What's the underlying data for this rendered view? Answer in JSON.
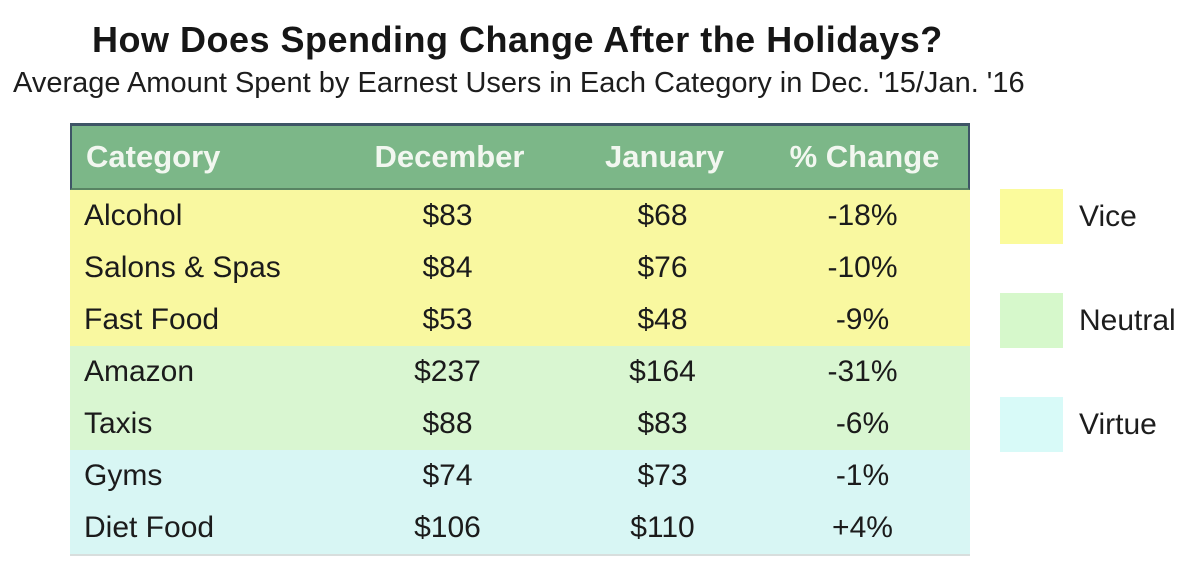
{
  "page": {
    "title": "How Does Spending Change After the Holidays?",
    "subtitle": "Average Amount Spent by Earnest Users in Each Category in Dec. '15/Jan. '16"
  },
  "chart_data": {
    "type": "table",
    "title": "How Does Spending Change After the Holidays?",
    "subtitle": "Average Amount Spent by Earnest Users in Each Category in Dec. '15/Jan. '16",
    "columns": [
      "Category",
      "December",
      "January",
      "% Change"
    ],
    "rows": [
      {
        "category": "Alcohol",
        "december": "$83",
        "january": "$68",
        "pct_change": "-18%",
        "group": "Vice"
      },
      {
        "category": "Salons & Spas",
        "december": "$84",
        "january": "$76",
        "pct_change": "-10%",
        "group": "Vice"
      },
      {
        "category": "Fast Food",
        "december": "$53",
        "january": "$48",
        "pct_change": "-9%",
        "group": "Vice"
      },
      {
        "category": "Amazon",
        "december": "$237",
        "january": "$164",
        "pct_change": "-31%",
        "group": "Neutral"
      },
      {
        "category": "Taxis",
        "december": "$88",
        "january": "$83",
        "pct_change": "-6%",
        "group": "Neutral"
      },
      {
        "category": "Gyms",
        "december": "$74",
        "january": "$73",
        "pct_change": "-1%",
        "group": "Virtue"
      },
      {
        "category": "Diet Food",
        "december": "$106",
        "january": "$110",
        "pct_change": "+4%",
        "group": "Virtue"
      }
    ],
    "december_values": [
      83,
      84,
      53,
      237,
      88,
      74,
      106
    ],
    "january_values": [
      68,
      76,
      48,
      164,
      83,
      73,
      110
    ],
    "pct_change_values": [
      -18,
      -10,
      -9,
      -31,
      -6,
      -1,
      4
    ],
    "legend": [
      {
        "label": "Vice",
        "color": "#FBFB9C"
      },
      {
        "label": "Neutral",
        "color": "#D6F8CB"
      },
      {
        "label": "Virtue",
        "color": "#D8FAF8"
      }
    ],
    "legend_position": "right"
  },
  "colors": {
    "header_bg": "#7CB788",
    "header_text": "#F2F7F0",
    "top_border": "#3E5566",
    "vice_bg": "#F9F8A0",
    "neutral_bg": "#D9F6D1",
    "virtue_bg": "#D8F6F4",
    "legend_vice": "#FBFB9C",
    "legend_neutral": "#D6F8CB",
    "legend_virtue": "#D8FAF8",
    "text": "#1B1B1B"
  }
}
